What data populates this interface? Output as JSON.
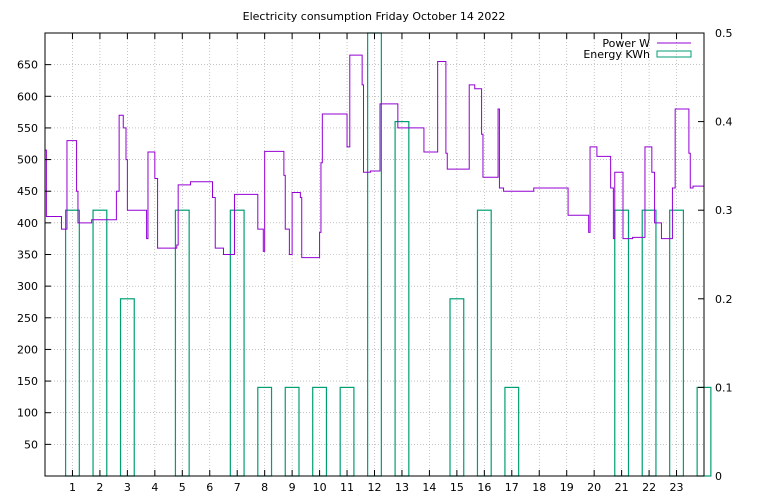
{
  "chart_data": {
    "type": "step",
    "title": "Electricity consumption Friday October 14 2022",
    "x_ticks": [
      "1",
      "2",
      "3",
      "4",
      "5",
      "6",
      "7",
      "8",
      "9",
      "10",
      "11",
      "12",
      "13",
      "14",
      "15",
      "16",
      "17",
      "18",
      "19",
      "20",
      "21",
      "22",
      "23"
    ],
    "xlim": [
      0,
      24
    ],
    "y_left": {
      "range": [
        0,
        700
      ],
      "ticks": [
        "50",
        "100",
        "150",
        "200",
        "250",
        "300",
        "350",
        "400",
        "450",
        "500",
        "550",
        "600",
        "650"
      ]
    },
    "y_right": {
      "range": [
        0,
        0.5
      ],
      "ticks": [
        "0",
        "0.1",
        "0.2",
        "0.3",
        "0.4",
        "0.5"
      ]
    },
    "grid": true,
    "legend_position": "top-right",
    "colors": {
      "power": "#9400d3",
      "energy": "#009e73"
    },
    "series": [
      {
        "name": "Power W",
        "axis": "left",
        "style": "steps",
        "points": [
          [
            0,
            515
          ],
          [
            0.05,
            410
          ],
          [
            0.6,
            390
          ],
          [
            0.8,
            530
          ],
          [
            1.15,
            450
          ],
          [
            1.2,
            400
          ],
          [
            1.7,
            405
          ],
          [
            2.6,
            450
          ],
          [
            2.7,
            570
          ],
          [
            2.85,
            550
          ],
          [
            2.95,
            500
          ],
          [
            3.0,
            420
          ],
          [
            3.7,
            375
          ],
          [
            3.75,
            512
          ],
          [
            4.0,
            470
          ],
          [
            4.1,
            360
          ],
          [
            4.8,
            365
          ],
          [
            4.85,
            460
          ],
          [
            5.3,
            465
          ],
          [
            6.1,
            440
          ],
          [
            6.2,
            360
          ],
          [
            6.5,
            350
          ],
          [
            6.9,
            445
          ],
          [
            7.75,
            390
          ],
          [
            7.95,
            355
          ],
          [
            8.0,
            513
          ],
          [
            8.7,
            475
          ],
          [
            8.75,
            390
          ],
          [
            8.9,
            350
          ],
          [
            9.0,
            448
          ],
          [
            9.3,
            440
          ],
          [
            9.35,
            345
          ],
          [
            10.0,
            385
          ],
          [
            10.05,
            495
          ],
          [
            10.1,
            572
          ],
          [
            11.0,
            520
          ],
          [
            11.1,
            665
          ],
          [
            11.55,
            618
          ],
          [
            11.6,
            480
          ],
          [
            11.85,
            482
          ],
          [
            12.2,
            588
          ],
          [
            12.85,
            550
          ],
          [
            13.8,
            512
          ],
          [
            14.3,
            655
          ],
          [
            14.6,
            510
          ],
          [
            14.65,
            485
          ],
          [
            15.45,
            618
          ],
          [
            15.65,
            612
          ],
          [
            15.9,
            540
          ],
          [
            15.95,
            472
          ],
          [
            16.5,
            580
          ],
          [
            16.55,
            455
          ],
          [
            16.7,
            450
          ],
          [
            17.8,
            455
          ],
          [
            19.05,
            412
          ],
          [
            19.8,
            385
          ],
          [
            19.85,
            520
          ],
          [
            20.1,
            505
          ],
          [
            20.6,
            455
          ],
          [
            20.7,
            375
          ],
          [
            20.75,
            480
          ],
          [
            21.05,
            375
          ],
          [
            21.4,
            377
          ],
          [
            21.85,
            520
          ],
          [
            22.1,
            480
          ],
          [
            22.2,
            400
          ],
          [
            22.45,
            375
          ],
          [
            22.85,
            455
          ],
          [
            22.95,
            580
          ],
          [
            23.45,
            510
          ],
          [
            23.5,
            455
          ],
          [
            23.6,
            458
          ],
          [
            24.0,
            458
          ]
        ]
      },
      {
        "name": "Energy KWh",
        "axis": "right",
        "style": "boxes",
        "bars": [
          [
            0,
            0.3
          ],
          [
            1,
            0.3
          ],
          [
            2,
            0.2
          ],
          [
            3,
            0
          ],
          [
            4,
            0.3
          ],
          [
            5,
            0
          ],
          [
            6,
            0.3
          ],
          [
            7,
            0.1
          ],
          [
            8,
            0.1
          ],
          [
            9,
            0.1
          ],
          [
            10,
            0.1
          ],
          [
            11,
            0.5
          ],
          [
            12,
            0.4
          ],
          [
            13,
            0
          ],
          [
            14,
            0.2
          ],
          [
            15,
            0.3
          ],
          [
            16,
            0.1
          ],
          [
            17,
            0
          ],
          [
            18,
            0
          ],
          [
            19,
            0
          ],
          [
            20,
            0.3
          ],
          [
            21,
            0.3
          ],
          [
            22,
            0.3
          ],
          [
            23,
            0.1
          ]
        ]
      }
    ]
  }
}
